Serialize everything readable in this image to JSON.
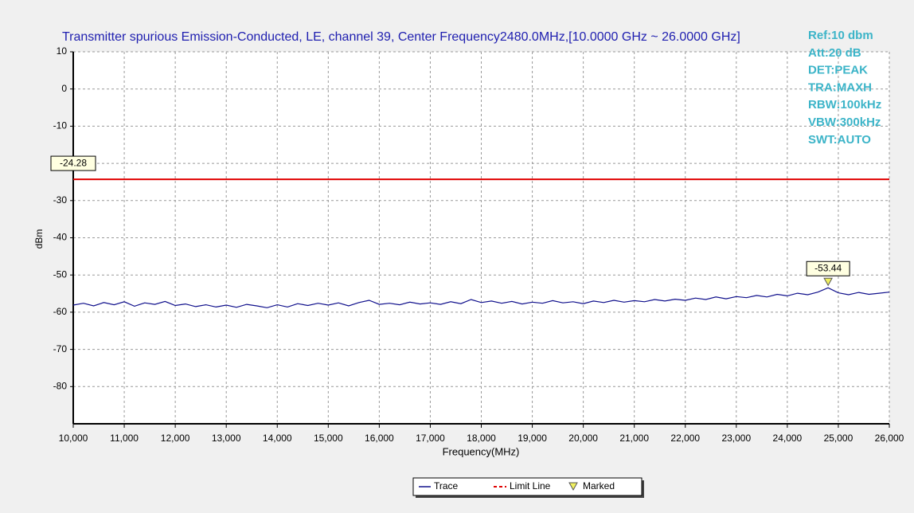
{
  "chart_data": {
    "type": "line",
    "title": "Transmitter spurious Emission-Conducted, LE, channel 39, Center Frequency2480.0MHz,[10.0000 GHz ~ 26.0000 GHz]",
    "annotations": [
      "Ref:10 dbm",
      "Att:20 dB",
      "DET:PEAK",
      "TRA:MAXH",
      "RBW:100kHz",
      "VBW:300kHz",
      "SWT:AUTO"
    ],
    "x_label": "Frequency(MHz)",
    "y_label": "dBm",
    "xlim": [
      10000,
      26000
    ],
    "xticks": [
      {
        "value": 10000,
        "label": "10,000"
      },
      {
        "value": 11000,
        "label": "11,000"
      },
      {
        "value": 12000,
        "label": "12,000"
      },
      {
        "value": 13000,
        "label": "13,000"
      },
      {
        "value": 14000,
        "label": "14,000"
      },
      {
        "value": 15000,
        "label": "15,000"
      },
      {
        "value": 16000,
        "label": "16,000"
      },
      {
        "value": 17000,
        "label": "17,000"
      },
      {
        "value": 18000,
        "label": "18,000"
      },
      {
        "value": 19000,
        "label": "19,000"
      },
      {
        "value": 20000,
        "label": "20,000"
      },
      {
        "value": 21000,
        "label": "21,000"
      },
      {
        "value": 22000,
        "label": "22,000"
      },
      {
        "value": 23000,
        "label": "23,000"
      },
      {
        "value": 24000,
        "label": "24,000"
      },
      {
        "value": 25000,
        "label": "25,000"
      },
      {
        "value": 26000,
        "label": "26,000"
      }
    ],
    "ylim": [
      -90,
      10
    ],
    "yticks": [
      10,
      0,
      -10,
      -20,
      -30,
      -40,
      -50,
      -60,
      -70,
      -80
    ],
    "grid": true,
    "x": [
      10000,
      10200,
      10400,
      10600,
      10800,
      11000,
      11200,
      11400,
      11600,
      11800,
      12000,
      12200,
      12400,
      12600,
      12800,
      13000,
      13200,
      13400,
      13600,
      13800,
      14000,
      14200,
      14400,
      14600,
      14800,
      15000,
      15200,
      15400,
      15600,
      15800,
      16000,
      16200,
      16400,
      16600,
      16800,
      17000,
      17200,
      17400,
      17600,
      17800,
      18000,
      18200,
      18400,
      18600,
      18800,
      19000,
      19200,
      19400,
      19600,
      19800,
      20000,
      20200,
      20400,
      20600,
      20800,
      21000,
      21200,
      21400,
      21600,
      21800,
      22000,
      22200,
      22400,
      22600,
      22800,
      23000,
      23200,
      23400,
      23600,
      23800,
      24000,
      24200,
      24400,
      24600,
      24800,
      25000,
      25200,
      25400,
      25600,
      25800,
      26000
    ],
    "series": [
      {
        "name": "Trace",
        "color": "#10108c",
        "values": [
          -58.1,
          -57.6,
          -58.3,
          -57.4,
          -58.0,
          -57.2,
          -58.4,
          -57.5,
          -57.9,
          -57.1,
          -58.2,
          -57.8,
          -58.5,
          -58.0,
          -58.6,
          -58.1,
          -58.7,
          -57.9,
          -58.3,
          -58.8,
          -58.0,
          -58.6,
          -57.7,
          -58.2,
          -57.6,
          -58.1,
          -57.5,
          -58.3,
          -57.4,
          -56.8,
          -57.9,
          -57.6,
          -58.0,
          -57.3,
          -57.8,
          -57.5,
          -57.9,
          -57.2,
          -57.7,
          -56.6,
          -57.4,
          -57.0,
          -57.6,
          -57.1,
          -57.8,
          -57.3,
          -57.6,
          -56.9,
          -57.5,
          -57.2,
          -57.7,
          -57.0,
          -57.4,
          -56.8,
          -57.3,
          -56.9,
          -57.2,
          -56.6,
          -57.0,
          -56.5,
          -56.8,
          -56.2,
          -56.6,
          -55.9,
          -56.4,
          -55.8,
          -56.1,
          -55.5,
          -55.9,
          -55.2,
          -55.6,
          -54.9,
          -55.3,
          -54.6,
          -53.44,
          -54.8,
          -55.3,
          -54.7,
          -55.2,
          -54.9,
          -54.6
        ]
      }
    ],
    "limit_line": {
      "name": "Limit Line",
      "color": "#e00000",
      "value": -24.28
    },
    "marker": {
      "name": "Marked",
      "color": "#f0f060",
      "x": 24800,
      "value": -53.44
    }
  }
}
